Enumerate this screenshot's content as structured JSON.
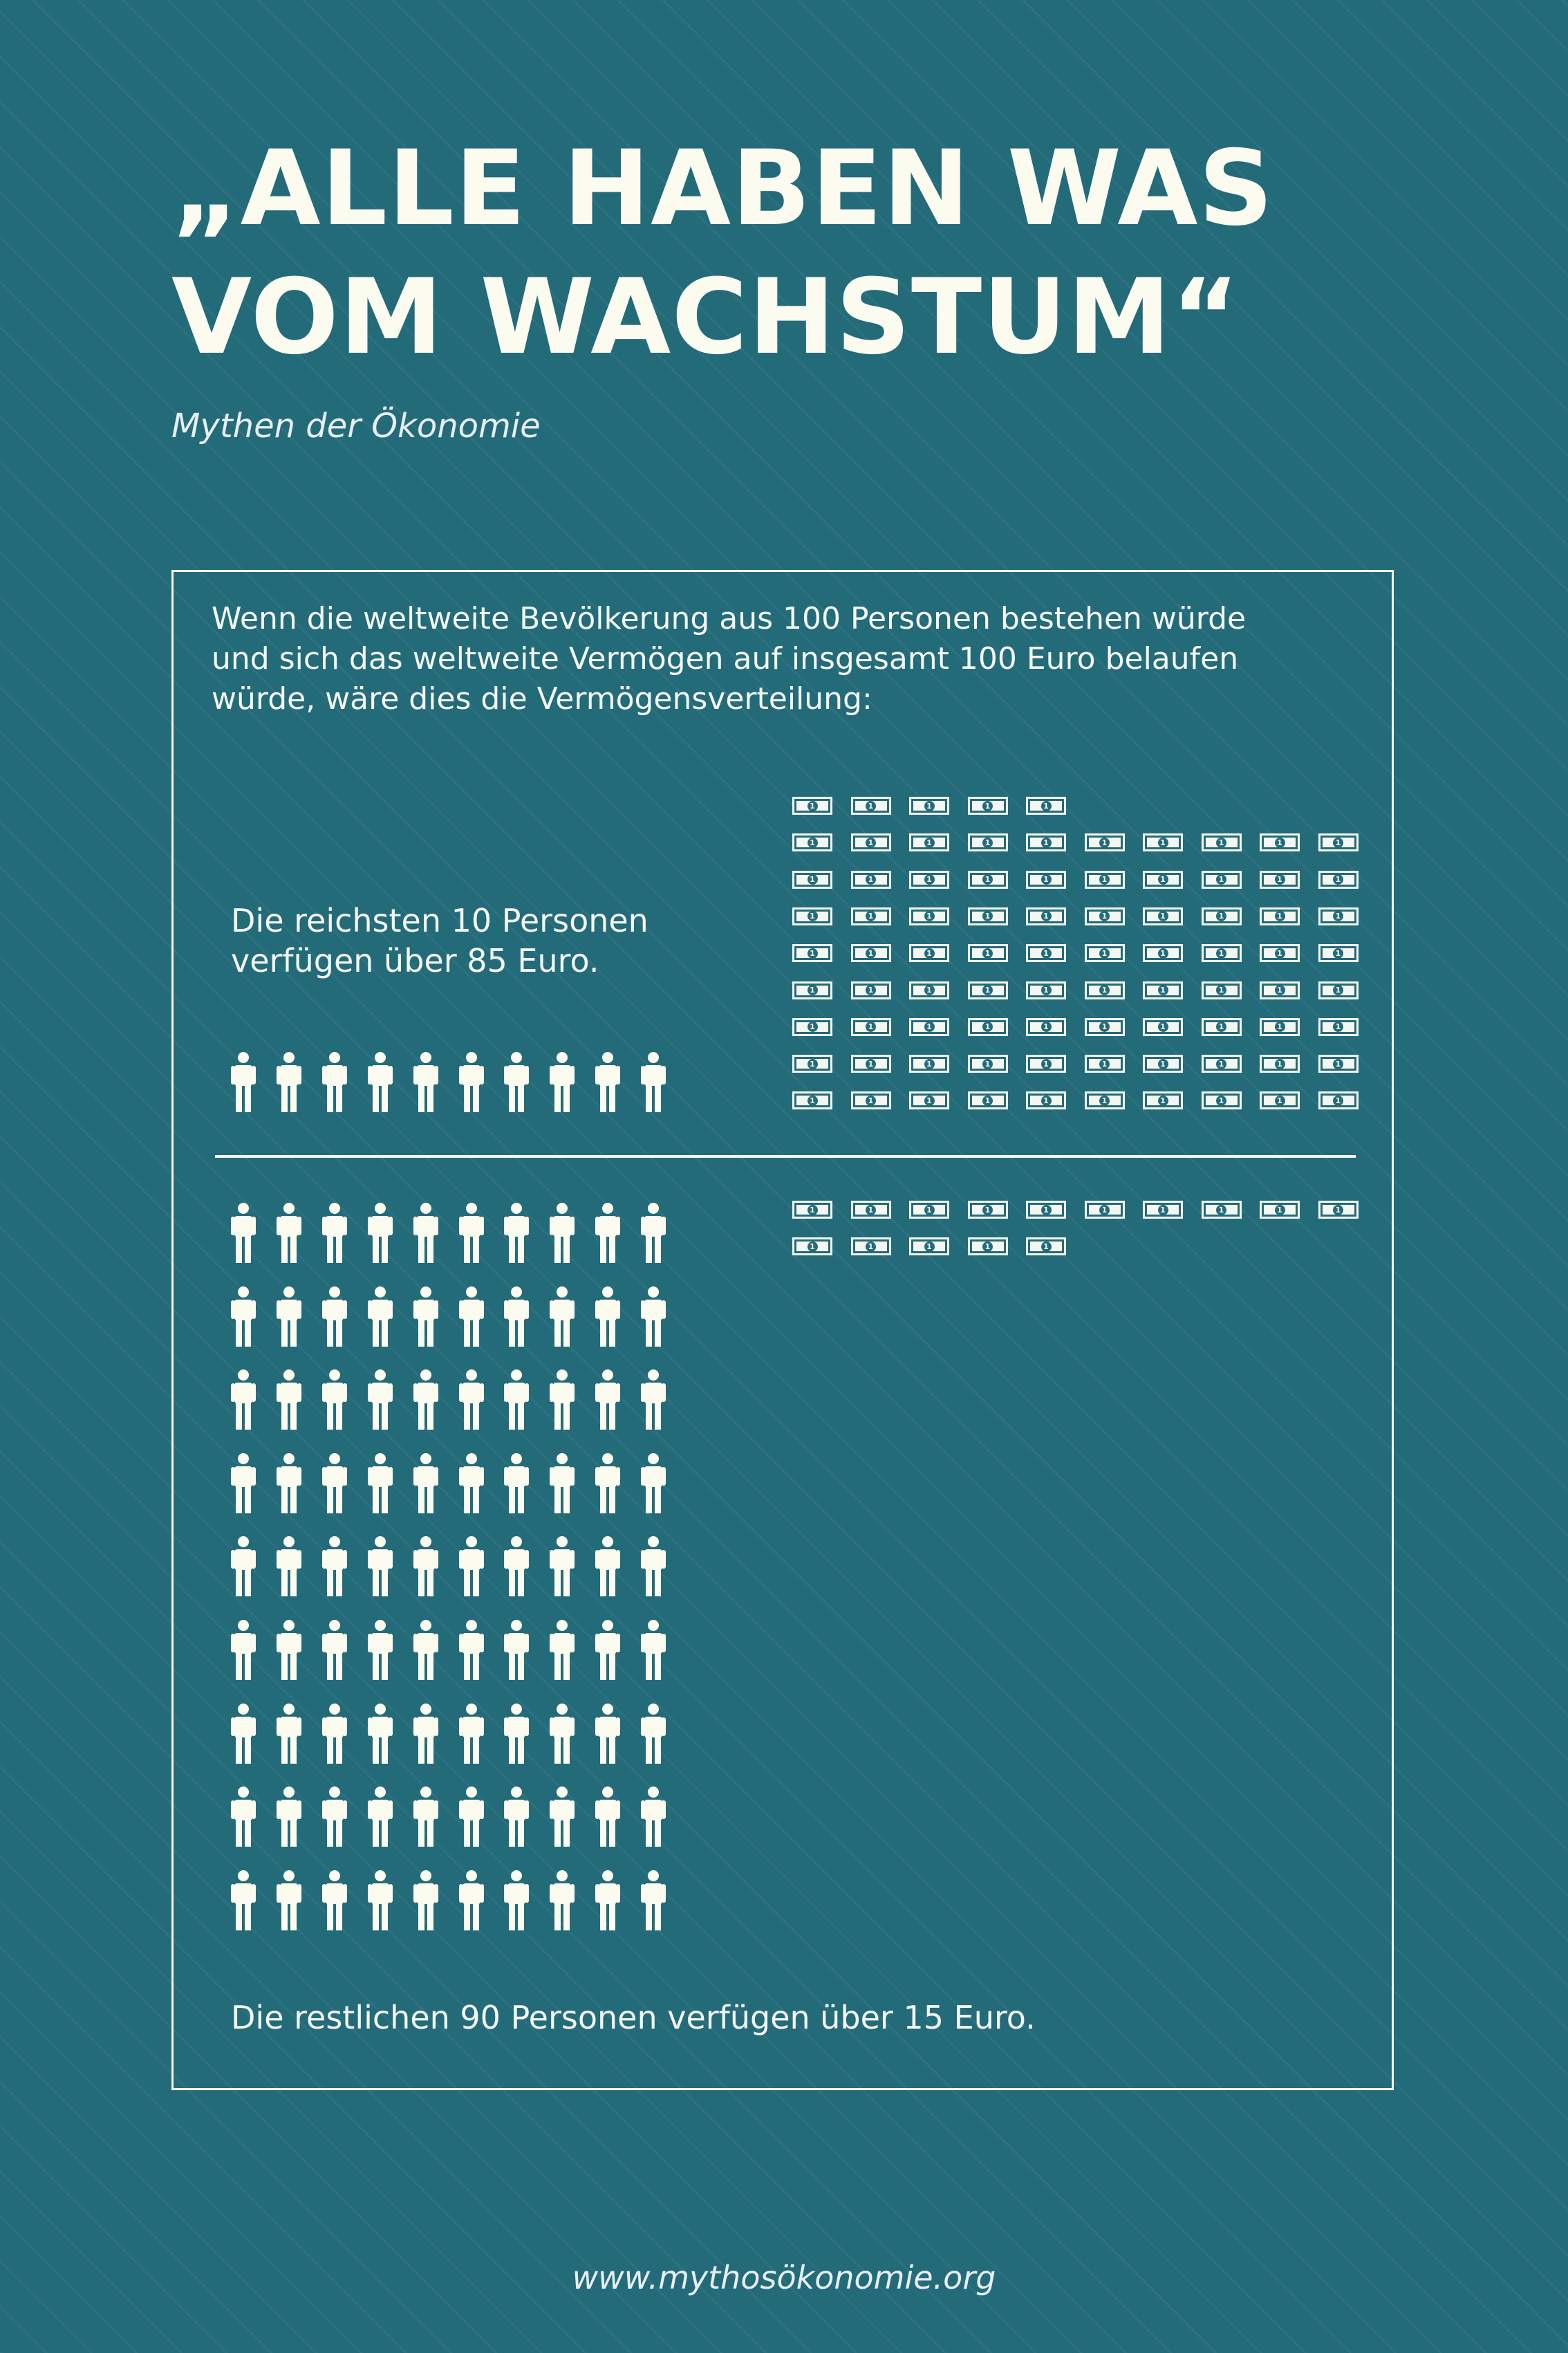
{
  "title_lines": [
    "„ALLE HABEN WAS",
    "VOM WACHSTUM“"
  ],
  "subtitle": "Mythen der Ökonomie",
  "intro": "Wenn die weltweite Bevölkerung aus 100 Personen bestehen würde\nund sich das weltweite Vermögen auf insgesamt 100 Euro belaufen\nwürde, wäre dies die Vermögensverteilung:",
  "rich": {
    "caption": "Die reichsten 10 Personen\nverfügen über 85 Euro.",
    "persons": 10,
    "euros": 85
  },
  "rest": {
    "caption": "Die restlichen 90 Personen verfügen über 15 Euro.",
    "persons": 90,
    "euros": 15
  },
  "icons": {
    "person": "person-icon",
    "banknote": "one-euro-banknote-icon",
    "banknote_denomination": "1"
  },
  "colors": {
    "background": "#246b7a",
    "foreground": "#fbfbf0"
  },
  "footer": "www.mythosökonomie.org"
}
